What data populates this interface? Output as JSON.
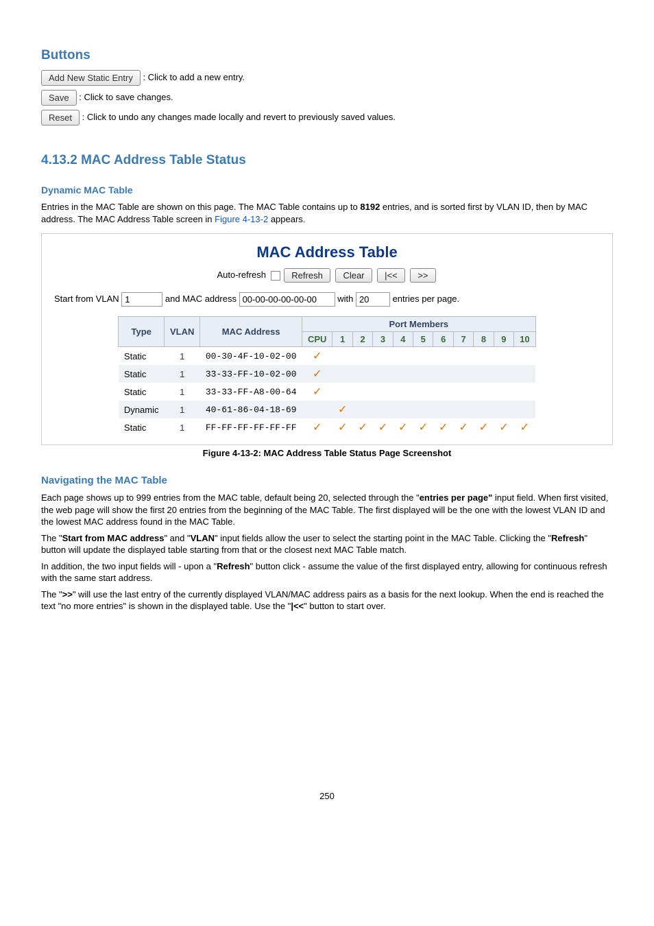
{
  "buttons_section": {
    "heading": "Buttons",
    "add_btn": "Add New Static Entry",
    "add_desc": " : Click to add a new entry.",
    "save_btn": "Save",
    "save_desc": ": Click to save changes.",
    "reset_btn": "Reset",
    "reset_desc": ": Click to undo any changes made locally and revert to previously saved values."
  },
  "status_section": {
    "heading": "4.13.2 MAC Address Table Status",
    "sub_dynamic": "Dynamic MAC Table",
    "intro_pre": "Entries in the MAC Table are shown on this page. The MAC Table contains up to ",
    "intro_bold": "8192",
    "intro_mid": " entries, and is sorted first by VLAN ID, then by MAC address. The MAC Address Table screen in ",
    "intro_link": "Figure 4-13-2",
    "intro_post": " appears."
  },
  "figure": {
    "title": "MAC Address Table",
    "auto_refresh": "Auto-refresh",
    "refresh": "Refresh",
    "clear": "Clear",
    "prev": "|<<",
    "next": ">>",
    "start_from_vlan_label": "Start from VLAN",
    "start_from_vlan_value": "1",
    "and_mac_label": "and MAC address",
    "mac_value": "00-00-00-00-00-00",
    "with_label": "with",
    "with_value": "20",
    "entries_per_page": "entries per page.",
    "headers": {
      "type": "Type",
      "vlan": "VLAN",
      "mac": "MAC Address",
      "port_members": "Port Members",
      "cpu": "CPU",
      "p1": "1",
      "p2": "2",
      "p3": "3",
      "p4": "4",
      "p5": "5",
      "p6": "6",
      "p7": "7",
      "p8": "8",
      "p9": "9",
      "p10": "10"
    },
    "rows": [
      {
        "type": "Static",
        "vlan": "1",
        "mac": "00-30-4F-10-02-00",
        "ticks": [
          "cpu"
        ]
      },
      {
        "type": "Static",
        "vlan": "1",
        "mac": "33-33-FF-10-02-00",
        "ticks": [
          "cpu"
        ]
      },
      {
        "type": "Static",
        "vlan": "1",
        "mac": "33-33-FF-A8-00-64",
        "ticks": [
          "cpu"
        ]
      },
      {
        "type": "Dynamic",
        "vlan": "1",
        "mac": "40-61-86-04-18-69",
        "ticks": [
          "1"
        ]
      },
      {
        "type": "Static",
        "vlan": "1",
        "mac": "FF-FF-FF-FF-FF-FF",
        "ticks": [
          "cpu",
          "1",
          "2",
          "3",
          "4",
          "5",
          "6",
          "7",
          "8",
          "9",
          "10"
        ]
      }
    ],
    "caption_pre": "Figure 4-13-2:",
    "caption_post": " MAC Address Table Status Page Screenshot"
  },
  "nav_section": {
    "heading": "Navigating the MAC Table",
    "p1_pre": "Each page shows up to 999 entries from the MAC table, default being 20, selected through the \"",
    "p1_bold": "entries per page\"",
    "p1_post": " input field. When first visited, the web page will show the first 20 entries from the beginning of the MAC Table. The first displayed will be the one with the lowest VLAN ID and the lowest MAC address found in the MAC Table.",
    "p2_a": "The \"",
    "p2_b": "Start from MAC address",
    "p2_c": "\" and \"",
    "p2_d": "VLAN",
    "p2_e": "\" input fields allow the user to select the starting point in the MAC Table. Clicking the \"",
    "p2_f": "Refresh",
    "p2_g": "\" button will update the displayed table starting from that or the closest next MAC Table match.",
    "p3_a": "In addition, the two input fields will - upon a \"",
    "p3_b": "Refresh",
    "p3_c": "\" button click - assume the value of the first displayed entry, allowing for continuous refresh with the same start address.",
    "p4_a": "The \"",
    "p4_b": ">>",
    "p4_c": "\" will use the last entry of the currently displayed VLAN/MAC address pairs as a basis for the next lookup. When the end is reached the text \"no more entries\" is shown in the displayed table. Use the \"",
    "p4_d": "|<<",
    "p4_e": "\" button to start over."
  },
  "page_number": "250"
}
